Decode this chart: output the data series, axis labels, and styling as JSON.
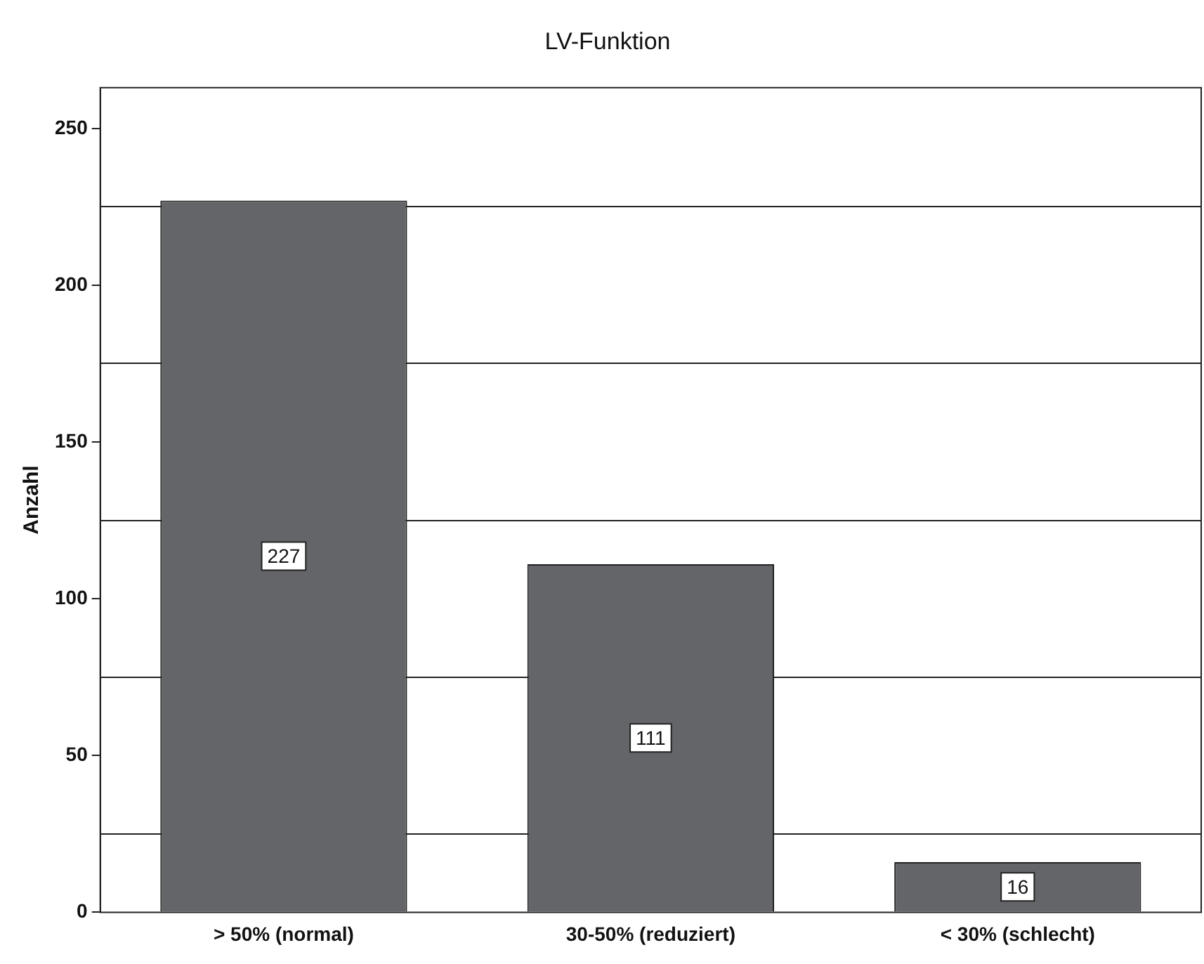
{
  "chart_data": {
    "type": "bar",
    "title": "LV-Funktion",
    "ylabel": "Anzahl",
    "categories": [
      "> 50% (normal)",
      "30-50% (reduziert)",
      "< 30% (schlecht)"
    ],
    "values": [
      227,
      111,
      16
    ],
    "color": "#646569",
    "ylim": [
      0,
      263
    ],
    "yticks": [
      0,
      {
        "value": 25,
        "label": null
      },
      50,
      {
        "value": 75,
        "label": null
      },
      100,
      {
        "value": 125,
        "label": null
      },
      150,
      {
        "value": 175,
        "label": null
      },
      200,
      {
        "value": 225,
        "label": null
      },
      250
    ],
    "grid": true,
    "data_labels": true,
    "legend": false
  }
}
